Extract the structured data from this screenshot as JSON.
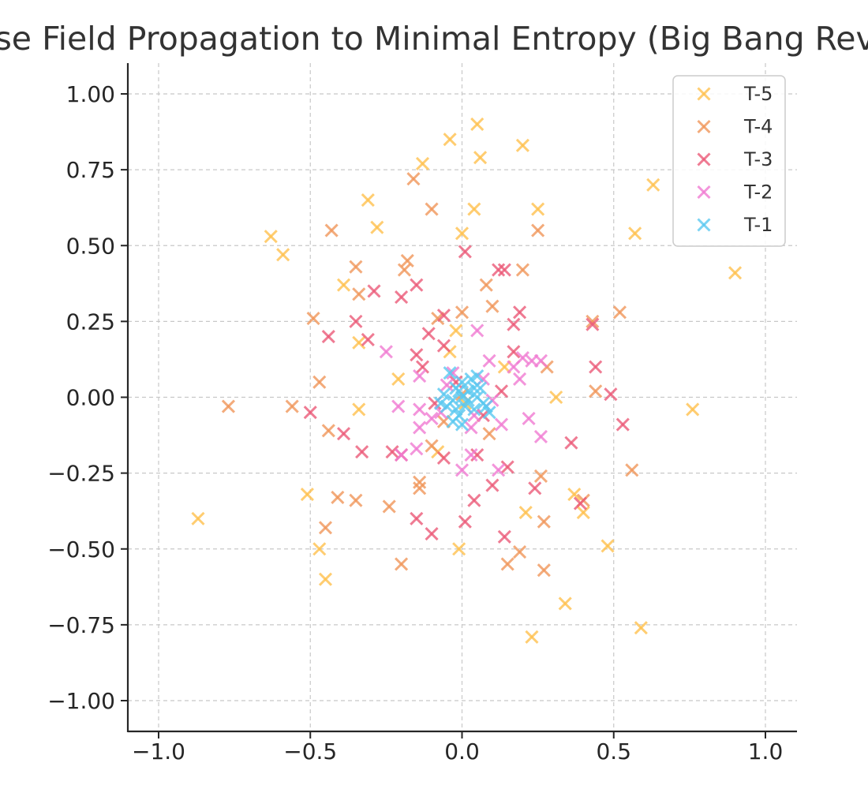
{
  "chart_data": {
    "type": "scatter",
    "title": "Reverse Field Propagation to Minimal Entropy (Big Bang Reversal)",
    "xlabel": "",
    "ylabel": "",
    "xlim": [
      -1.1,
      1.1
    ],
    "ylim": [
      -1.1,
      1.1
    ],
    "xticks": [
      -1.0,
      -0.5,
      0.0,
      0.5,
      1.0
    ],
    "xtick_labels": [
      "−1.0",
      "−0.5",
      "0.0",
      "0.5",
      "1.0"
    ],
    "yticks": [
      1.0,
      0.75,
      0.5,
      0.25,
      0.0,
      -0.25,
      -0.5,
      -0.75,
      -1.0
    ],
    "ytick_labels": [
      "1.00",
      "0.75",
      "0.50",
      "0.25",
      "0.00",
      "−0.25",
      "−0.50",
      "−0.75",
      "−1.00"
    ],
    "grid": true,
    "legend_position": "top-right",
    "marker": "x",
    "series": [
      {
        "name": "T-5",
        "color": "#ffc04d",
        "points": [
          [
            -0.04,
            0.85
          ],
          [
            0.05,
            0.9
          ],
          [
            0.2,
            0.83
          ],
          [
            -0.13,
            0.77
          ],
          [
            0.06,
            0.79
          ],
          [
            0.63,
            0.7
          ],
          [
            -0.63,
            0.53
          ],
          [
            -0.31,
            0.65
          ],
          [
            -0.28,
            0.56
          ],
          [
            0.04,
            0.62
          ],
          [
            0.25,
            0.62
          ],
          [
            -0.59,
            0.47
          ],
          [
            0.0,
            0.54
          ],
          [
            0.57,
            0.54
          ],
          [
            0.9,
            0.41
          ],
          [
            -0.39,
            0.37
          ],
          [
            -0.34,
            0.18
          ],
          [
            -0.04,
            0.15
          ],
          [
            -0.21,
            0.06
          ],
          [
            0.31,
            0.0
          ],
          [
            -0.34,
            -0.04
          ],
          [
            0.76,
            -0.04
          ],
          [
            0.14,
            0.1
          ],
          [
            -0.08,
            -0.18
          ],
          [
            -0.51,
            -0.32
          ],
          [
            0.37,
            -0.32
          ],
          [
            0.4,
            -0.38
          ],
          [
            -0.87,
            -0.4
          ],
          [
            0.21,
            -0.38
          ],
          [
            -0.47,
            -0.5
          ],
          [
            -0.01,
            -0.5
          ],
          [
            0.48,
            -0.49
          ],
          [
            -0.45,
            -0.6
          ],
          [
            0.34,
            -0.68
          ],
          [
            0.59,
            -0.76
          ],
          [
            0.23,
            -0.79
          ],
          [
            -0.02,
            0.22
          ],
          [
            0.01,
            -0.02
          ]
        ]
      },
      {
        "name": "T-4",
        "color": "#f0965a",
        "points": [
          [
            -0.16,
            0.72
          ],
          [
            -0.1,
            0.62
          ],
          [
            -0.43,
            0.55
          ],
          [
            0.25,
            0.55
          ],
          [
            -0.35,
            0.43
          ],
          [
            -0.18,
            0.45
          ],
          [
            0.2,
            0.42
          ],
          [
            -0.19,
            0.42
          ],
          [
            0.08,
            0.37
          ],
          [
            -0.34,
            0.34
          ],
          [
            0.1,
            0.3
          ],
          [
            -0.49,
            0.26
          ],
          [
            0.0,
            0.28
          ],
          [
            0.52,
            0.28
          ],
          [
            0.43,
            0.25
          ],
          [
            -0.08,
            0.26
          ],
          [
            0.28,
            0.1
          ],
          [
            -0.47,
            0.05
          ],
          [
            -0.77,
            -0.03
          ],
          [
            -0.56,
            -0.03
          ],
          [
            0.44,
            0.02
          ],
          [
            -0.44,
            -0.11
          ],
          [
            0.09,
            -0.12
          ],
          [
            -0.1,
            -0.16
          ],
          [
            -0.14,
            -0.28
          ],
          [
            -0.14,
            -0.3
          ],
          [
            -0.41,
            -0.33
          ],
          [
            -0.35,
            -0.34
          ],
          [
            0.26,
            -0.26
          ],
          [
            0.56,
            -0.24
          ],
          [
            -0.24,
            -0.36
          ],
          [
            0.4,
            -0.34
          ],
          [
            -0.45,
            -0.43
          ],
          [
            0.27,
            -0.41
          ],
          [
            -0.2,
            -0.55
          ],
          [
            0.15,
            -0.55
          ],
          [
            0.19,
            -0.51
          ],
          [
            0.27,
            -0.57
          ],
          [
            0.0,
            0.01
          ],
          [
            -0.06,
            -0.08
          ]
        ]
      },
      {
        "name": "T-3",
        "color": "#eb5a78",
        "points": [
          [
            0.01,
            0.48
          ],
          [
            0.12,
            0.42
          ],
          [
            0.14,
            0.42
          ],
          [
            -0.29,
            0.35
          ],
          [
            -0.2,
            0.33
          ],
          [
            -0.15,
            0.37
          ],
          [
            0.19,
            0.28
          ],
          [
            -0.35,
            0.25
          ],
          [
            0.17,
            0.24
          ],
          [
            0.43,
            0.24
          ],
          [
            -0.44,
            0.2
          ],
          [
            -0.31,
            0.19
          ],
          [
            -0.11,
            0.21
          ],
          [
            -0.06,
            0.27
          ],
          [
            -0.06,
            0.17
          ],
          [
            -0.15,
            0.14
          ],
          [
            0.17,
            0.15
          ],
          [
            -0.13,
            0.1
          ],
          [
            0.44,
            0.1
          ],
          [
            0.49,
            0.01
          ],
          [
            -0.5,
            -0.05
          ],
          [
            0.53,
            -0.09
          ],
          [
            -0.39,
            -0.12
          ],
          [
            0.36,
            -0.15
          ],
          [
            -0.33,
            -0.18
          ],
          [
            -0.23,
            -0.18
          ],
          [
            -0.2,
            -0.19
          ],
          [
            0.05,
            -0.19
          ],
          [
            -0.06,
            -0.2
          ],
          [
            0.15,
            -0.23
          ],
          [
            -0.15,
            -0.4
          ],
          [
            0.04,
            -0.34
          ],
          [
            0.1,
            -0.29
          ],
          [
            0.24,
            -0.3
          ],
          [
            0.01,
            -0.41
          ],
          [
            -0.1,
            -0.45
          ],
          [
            0.14,
            -0.46
          ],
          [
            0.39,
            -0.35
          ],
          [
            0.13,
            0.02
          ],
          [
            -0.02,
            0.05
          ],
          [
            0.07,
            -0.06
          ],
          [
            -0.09,
            -0.02
          ]
        ]
      },
      {
        "name": "T-2",
        "color": "#f07ad2",
        "points": [
          [
            0.05,
            0.22
          ],
          [
            -0.25,
            0.15
          ],
          [
            0.2,
            0.13
          ],
          [
            0.23,
            0.12
          ],
          [
            0.26,
            0.12
          ],
          [
            0.09,
            0.12
          ],
          [
            -0.14,
            0.07
          ],
          [
            0.19,
            0.06
          ],
          [
            0.17,
            0.1
          ],
          [
            -0.21,
            -0.03
          ],
          [
            -0.14,
            -0.04
          ],
          [
            -0.1,
            -0.07
          ],
          [
            0.22,
            -0.07
          ],
          [
            0.13,
            -0.09
          ],
          [
            0.03,
            -0.1
          ],
          [
            -0.14,
            -0.1
          ],
          [
            0.26,
            -0.13
          ],
          [
            -0.2,
            -0.19
          ],
          [
            -0.15,
            -0.17
          ],
          [
            0.0,
            -0.24
          ],
          [
            0.03,
            -0.19
          ],
          [
            0.12,
            -0.24
          ],
          [
            0.07,
            0.06
          ],
          [
            -0.05,
            0.04
          ],
          [
            0.1,
            -0.01
          ],
          [
            -0.07,
            -0.05
          ],
          [
            0.04,
            -0.06
          ],
          [
            -0.03,
            0.08
          ]
        ]
      },
      {
        "name": "T-1",
        "color": "#5ac8f0",
        "points": [
          [
            -0.04,
            0.08
          ],
          [
            0.0,
            0.05
          ],
          [
            0.03,
            0.06
          ],
          [
            0.05,
            0.07
          ],
          [
            -0.02,
            0.03
          ],
          [
            0.02,
            0.02
          ],
          [
            0.04,
            0.03
          ],
          [
            -0.06,
            0.01
          ],
          [
            -0.03,
            -0.01
          ],
          [
            0.0,
            0.0
          ],
          [
            0.02,
            -0.01
          ],
          [
            0.05,
            0.0
          ],
          [
            0.07,
            -0.02
          ],
          [
            -0.05,
            -0.03
          ],
          [
            -0.02,
            -0.04
          ],
          [
            0.01,
            -0.03
          ],
          [
            0.04,
            -0.04
          ],
          [
            0.08,
            -0.03
          ],
          [
            -0.01,
            -0.06
          ],
          [
            -0.03,
            -0.08
          ],
          [
            0.0,
            -0.09
          ],
          [
            0.09,
            -0.05
          ],
          [
            -0.07,
            -0.02
          ],
          [
            0.06,
            0.03
          ],
          [
            -0.01,
            0.02
          ]
        ]
      }
    ]
  }
}
